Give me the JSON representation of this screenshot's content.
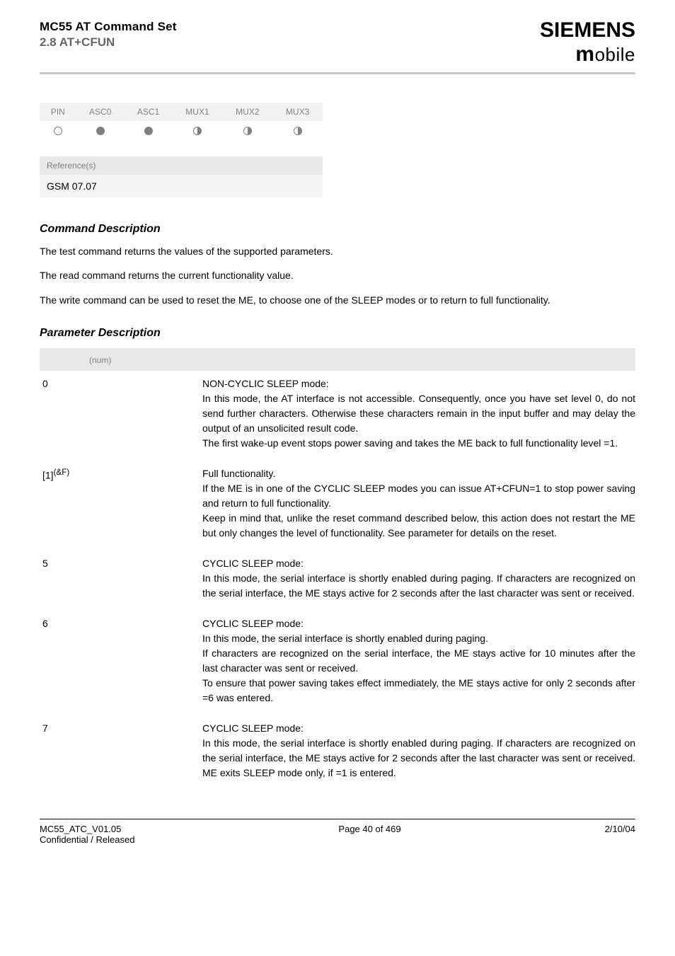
{
  "header": {
    "title1": "MC55 AT Command Set",
    "title2": "2.8 AT+CFUN",
    "logo_top": "SIEMENS",
    "logo_bottom_m": "m",
    "logo_bottom_rest": "obile"
  },
  "pin_table": {
    "headers": [
      "PIN",
      "ASC0",
      "ASC1",
      "MUX1",
      "MUX2",
      "MUX3"
    ],
    "states": [
      "open",
      "full",
      "full",
      "half",
      "half",
      "half"
    ]
  },
  "reference": {
    "label": "Reference(s)",
    "value": "GSM 07.07"
  },
  "cmd_desc": {
    "heading": "Command Description",
    "p1": "The test command returns the values of the supported parameters.",
    "p2": "The read command returns the current functionality value.",
    "p3": "The write command can be used to reset the ME, to choose one of the SLEEP modes or to return to full functionality."
  },
  "param_desc": {
    "heading": "Parameter Description",
    "num_label": "(num)",
    "rows": [
      {
        "key": "0",
        "desc": "NON-CYCLIC SLEEP mode:\nIn this mode, the AT interface is not accessible. Consequently, once you have set             level 0, do not send further characters. Otherwise these characters remain in the input buffer and may delay the output of an unsolicited result code.\nThe first wake-up event stops power saving and takes the ME back to full functionality level             =1."
      },
      {
        "key": "[1](&F)",
        "key_is_sup": true,
        "desc": "Full functionality.\nIf the ME is in one of the CYCLIC SLEEP modes you can issue AT+CFUN=1 to stop power saving and return to full functionality.\nKeep in mind that, unlike the reset command described below, this action does not restart the ME but only changes the level of functionality. See parameter          for details on the reset."
      },
      {
        "key": "5",
        "desc": "CYCLIC SLEEP mode:\nIn this mode, the serial interface is shortly enabled during paging. If characters are recognized on the serial interface, the ME stays active for 2 seconds after the last character was sent or received."
      },
      {
        "key": "6",
        "desc": "CYCLIC SLEEP mode:\nIn this mode, the serial interface is shortly enabled during paging.\nIf characters are recognized on the serial interface, the ME stays active for 10 minutes after the last character was sent or received.\nTo ensure that power saving takes effect immediately, the ME stays active for only 2 seconds after             =6 was entered."
      },
      {
        "key": "7",
        "desc": "CYCLIC SLEEP mode:\nIn this mode, the serial interface is shortly enabled during paging. If characters are recognized on the serial interface, the ME stays active for 2 seconds after the last character was sent or received. ME exits SLEEP mode only, if           =1 is entered."
      }
    ]
  },
  "footer": {
    "left1": "MC55_ATC_V01.05",
    "left2": "Confidential / Released",
    "center": "Page 40 of 469",
    "right": "2/10/04"
  },
  "colors": {
    "grey_text": "#666666",
    "light_grey_bg": "#e8e8e8",
    "lighter_grey_bg": "#f4f4f4",
    "rule_grey": "#c8c8c8",
    "muted": "#808080"
  }
}
